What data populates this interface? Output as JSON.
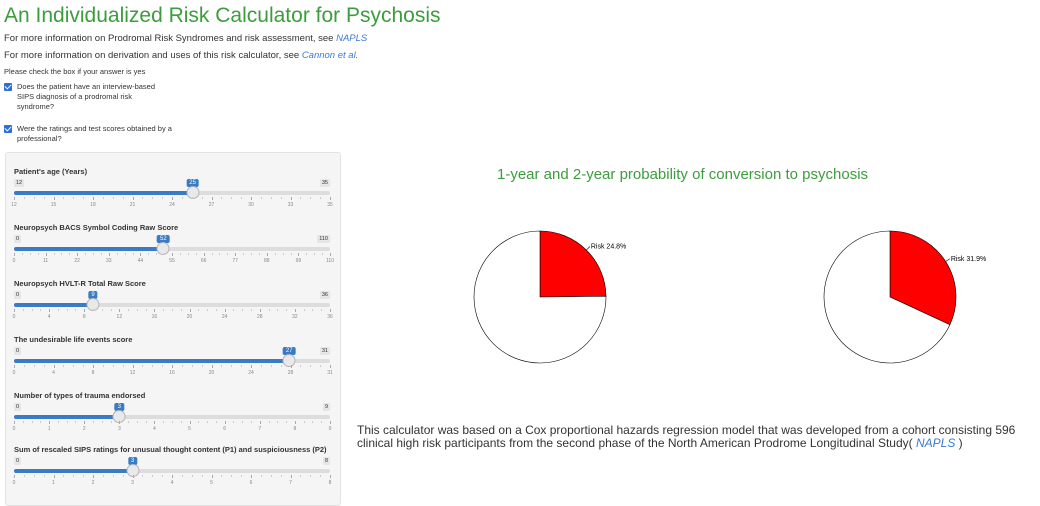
{
  "header": {
    "title": "An Individualized Risk Calculator for Psychosis",
    "info1_text": "For more information on Prodromal Risk Syndromes and risk assessment, see",
    "info1_link": "NAPLS",
    "info2_text": "For more information on derivation and uses of this risk calculator, see",
    "info2_link": "Cannon et al.",
    "note": "Please check the box if your answer is yes"
  },
  "checkboxes": [
    {
      "label": "Does the patient have an interview-based SIPS diagnosis of a prodromal risk syndrome?",
      "checked": true
    },
    {
      "label": "Were the ratings and test scores obtained by a professional?",
      "checked": true
    }
  ],
  "sliders": [
    {
      "label": "Patient's age (Years)",
      "min": 12,
      "max": 35,
      "value": 25,
      "ticks": [
        "12",
        "15",
        "18",
        "21",
        "24",
        "27",
        "30",
        "33",
        "35"
      ]
    },
    {
      "label": "Neuropsych BACS Symbol Coding Raw Score",
      "min": 0,
      "max": 110,
      "value": 52,
      "ticks": [
        "0",
        "11",
        "22",
        "33",
        "44",
        "55",
        "66",
        "77",
        "88",
        "99",
        "110"
      ]
    },
    {
      "label": "Neuropsych HVLT-R Total Raw Score",
      "min": 0,
      "max": 36,
      "value": 9,
      "ticks": [
        "0",
        "4",
        "8",
        "12",
        "16",
        "20",
        "24",
        "28",
        "32",
        "36"
      ]
    },
    {
      "label": "The undesirable life events score",
      "min": 0,
      "max": 31,
      "value": 27,
      "ticks": [
        "0",
        "4",
        "8",
        "12",
        "16",
        "20",
        "24",
        "28",
        "31"
      ]
    },
    {
      "label": "Number of types of trauma endorsed",
      "min": 0,
      "max": 9,
      "value": 3,
      "ticks": [
        "0",
        "1",
        "2",
        "3",
        "4",
        "5",
        "6",
        "7",
        "8",
        "9"
      ]
    },
    {
      "label": "Sum of rescaled SIPS ratings for unusual thought content (P1) and suspiciousness (P2)",
      "min": 0,
      "max": 8,
      "value": 3,
      "ticks": [
        "0",
        "1",
        "2",
        "3",
        "4",
        "5",
        "6",
        "7",
        "8"
      ]
    }
  ],
  "chart": {
    "title": "1-year and 2-year probability of conversion to psychosis"
  },
  "chart_data": [
    {
      "type": "pie",
      "labels": [
        "Risk 24.8%",
        ""
      ],
      "values": [
        24.8,
        75.2
      ],
      "colors": [
        "#ff0000",
        "#ffffff"
      ]
    },
    {
      "type": "pie",
      "labels": [
        "Risk 31.9%",
        ""
      ],
      "values": [
        31.9,
        68.1
      ],
      "colors": [
        "#ff0000",
        "#ffffff"
      ]
    }
  ],
  "footer": {
    "text": "This calculator was based on a Cox proportional hazards regression model that was developed from a cohort consisting 596 clinical high risk participants from the second phase of the North American Prodrome Longitudinal Study(",
    "link": "NAPLS",
    "end": ")"
  }
}
